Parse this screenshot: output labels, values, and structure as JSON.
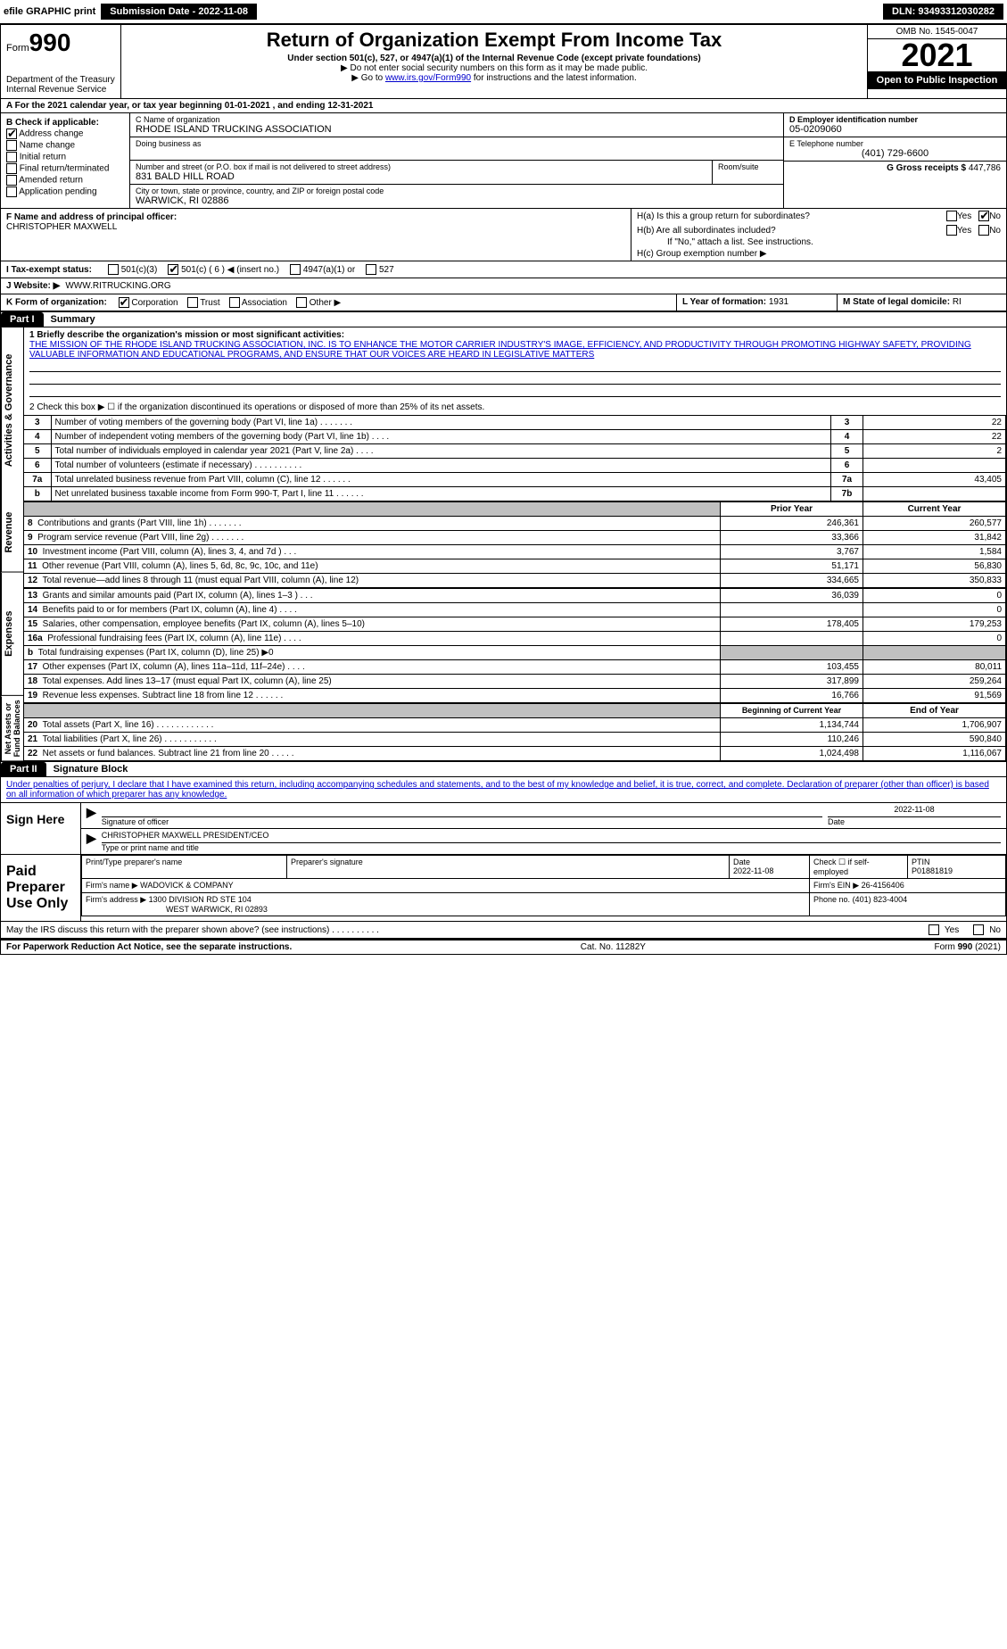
{
  "topbar": {
    "efile_label": "efile GRAPHIC print",
    "submission_label": "Submission Date - 2022-11-08",
    "dln_label": "DLN: 93493312030282"
  },
  "header": {
    "form_small": "Form",
    "form_num": "990",
    "dept": "Department of the Treasury",
    "irs": "Internal Revenue Service",
    "title": "Return of Organization Exempt From Income Tax",
    "subtitle": "Under section 501(c), 527, or 4947(a)(1) of the Internal Revenue Code (except private foundations)",
    "note1": "▶ Do not enter social security numbers on this form as it may be made public.",
    "note2_pre": "▶ Go to ",
    "note2_link": "www.irs.gov/Form990",
    "note2_post": " for instructions and the latest information.",
    "omb": "OMB No. 1545-0047",
    "year": "2021",
    "open_public": "Open to Public Inspection"
  },
  "section_a": "A For the 2021 calendar year, or tax year beginning 01-01-2021    , and ending 12-31-2021",
  "box_b": {
    "title": "B Check if applicable:",
    "items": [
      "Address change",
      "Name change",
      "Initial return",
      "Final return/terminated",
      "Amended return",
      "Application pending"
    ],
    "checked_index": 0
  },
  "box_c": {
    "name_lbl": "C Name of organization",
    "name": "RHODE ISLAND TRUCKING ASSOCIATION",
    "dba_lbl": "Doing business as",
    "dba": "",
    "street_lbl": "Number and street (or P.O. box if mail is not delivered to street address)",
    "room_lbl": "Room/suite",
    "street": "831 BALD HILL ROAD",
    "city_lbl": "City or town, state or province, country, and ZIP or foreign postal code",
    "city": "WARWICK, RI  02886"
  },
  "box_d": {
    "lbl": "D Employer identification number",
    "val": "05-0209060"
  },
  "box_e": {
    "lbl": "E Telephone number",
    "val": "(401) 729-6600"
  },
  "box_g": {
    "lbl": "G Gross receipts $",
    "val": "447,786"
  },
  "box_f": {
    "lbl": "F Name and address of principal officer:",
    "val": "CHRISTOPHER MAXWELL"
  },
  "box_h": {
    "a": "H(a) Is this a group return for subordinates?",
    "a_yes": "Yes",
    "a_no": "No",
    "b": "H(b) Are all subordinates included?",
    "b_yes": "Yes",
    "b_no": "No",
    "b_note": "If \"No,\" attach a list. See instructions.",
    "c": "H(c) Group exemption number ▶"
  },
  "box_i": {
    "lbl": "I   Tax-exempt status:",
    "opts": [
      "501(c)(3)",
      "501(c) ( 6 ) ◀ (insert no.)",
      "4947(a)(1) or",
      "527"
    ],
    "checked": 1
  },
  "box_j": {
    "lbl": "J   Website: ▶",
    "val": "WWW.RITRUCKING.ORG"
  },
  "box_k": {
    "lbl": "K Form of organization:",
    "opts": [
      "Corporation",
      "Trust",
      "Association",
      "Other ▶"
    ],
    "checked": 0
  },
  "box_l": {
    "lbl": "L Year of formation:",
    "val": "1931"
  },
  "box_m": {
    "lbl": "M State of legal domicile:",
    "val": "RI"
  },
  "part1": {
    "header": "Part I",
    "title": "Summary",
    "line1_lbl": "1  Briefly describe the organization's mission or most significant activities:",
    "mission": "THE MISSION OF THE RHODE ISLAND TRUCKING ASSOCIATION, INC. IS TO ENHANCE THE MOTOR CARRIER INDUSTRY'S IMAGE, EFFICIENCY, AND PRODUCTIVITY THROUGH PROMOTING HIGHWAY SAFETY, PROVIDING VALUABLE INFORMATION AND EDUCATIONAL PROGRAMS, AND ENSURE THAT OUR VOICES ARE HEARD IN LEGISLATIVE MATTERS",
    "line2": "2  Check this box ▶ ☐  if the organization discontinued its operations or disposed of more than 25% of its net assets.",
    "gov_side": "Activities & Governance",
    "rev_side": "Revenue",
    "exp_side": "Expenses",
    "net_side": "Net Assets or Fund Balances",
    "gov_rows": [
      {
        "n": "3",
        "t": "Number of voting members of the governing body (Part VI, line 1a)   .    .    .    .    .    .    .",
        "box": "3",
        "v": "22"
      },
      {
        "n": "4",
        "t": "Number of independent voting members of the governing body (Part VI, line 1b)   .    .    .    .",
        "box": "4",
        "v": "22"
      },
      {
        "n": "5",
        "t": "Total number of individuals employed in calendar year 2021 (Part V, line 2a)   .    .    .    .",
        "box": "5",
        "v": "2"
      },
      {
        "n": "6",
        "t": "Total number of volunteers (estimate if necessary)   .    .    .    .    .    .    .    .    .    .",
        "box": "6",
        "v": ""
      },
      {
        "n": "7a",
        "t": "Total unrelated business revenue from Part VIII, column (C), line 12   .    .    .    .    .    .",
        "box": "7a",
        "v": "43,405"
      },
      {
        "n": "b",
        "t": "Net unrelated business taxable income from Form 990-T, Part I, line 11   .    .    .    .    .    .",
        "box": "7b",
        "v": ""
      }
    ],
    "col_prior": "Prior Year",
    "col_current": "Current Year",
    "rev_rows": [
      {
        "n": "8",
        "t": "Contributions and grants (Part VIII, line 1h)   .    .    .    .    .    .    .",
        "p": "246,361",
        "c": "260,577"
      },
      {
        "n": "9",
        "t": "Program service revenue (Part VIII, line 2g)   .    .    .    .    .    .    .",
        "p": "33,366",
        "c": "31,842"
      },
      {
        "n": "10",
        "t": "Investment income (Part VIII, column (A), lines 3, 4, and 7d )   .    .    .",
        "p": "3,767",
        "c": "1,584"
      },
      {
        "n": "11",
        "t": "Other revenue (Part VIII, column (A), lines 5, 6d, 8c, 9c, 10c, and 11e)",
        "p": "51,171",
        "c": "56,830"
      },
      {
        "n": "12",
        "t": "Total revenue—add lines 8 through 11 (must equal Part VIII, column (A), line 12)",
        "p": "334,665",
        "c": "350,833"
      }
    ],
    "exp_rows": [
      {
        "n": "13",
        "t": "Grants and similar amounts paid (Part IX, column (A), lines 1–3 )   .    .    .",
        "p": "36,039",
        "c": "0"
      },
      {
        "n": "14",
        "t": "Benefits paid to or for members (Part IX, column (A), line 4)   .    .    .    .",
        "p": "",
        "c": "0"
      },
      {
        "n": "15",
        "t": "Salaries, other compensation, employee benefits (Part IX, column (A), lines 5–10)",
        "p": "178,405",
        "c": "179,253"
      },
      {
        "n": "16a",
        "t": "Professional fundraising fees (Part IX, column (A), line 11e)   .    .    .    .",
        "p": "",
        "c": "0"
      },
      {
        "n": "b",
        "t": "Total fundraising expenses (Part IX, column (D), line 25) ▶0",
        "p": "shaded",
        "c": "shaded"
      },
      {
        "n": "17",
        "t": "Other expenses (Part IX, column (A), lines 11a–11d, 11f–24e)   .    .    .    .",
        "p": "103,455",
        "c": "80,011"
      },
      {
        "n": "18",
        "t": "Total expenses. Add lines 13–17 (must equal Part IX, column (A), line 25)",
        "p": "317,899",
        "c": "259,264"
      },
      {
        "n": "19",
        "t": "Revenue less expenses. Subtract line 18 from line 12   .    .    .    .    .    .",
        "p": "16,766",
        "c": "91,569"
      }
    ],
    "col_begin": "Beginning of Current Year",
    "col_end": "End of Year",
    "net_rows": [
      {
        "n": "20",
        "t": "Total assets (Part X, line 16)   .    .    .    .    .    .    .    .    .    .    .    .",
        "p": "1,134,744",
        "c": "1,706,907"
      },
      {
        "n": "21",
        "t": "Total liabilities (Part X, line 26)   .    .    .    .    .    .    .    .    .    .    .",
        "p": "110,246",
        "c": "590,840"
      },
      {
        "n": "22",
        "t": "Net assets or fund balances. Subtract line 21 from line 20   .    .    .    .    .",
        "p": "1,024,498",
        "c": "1,116,067"
      }
    ]
  },
  "part2": {
    "header": "Part II",
    "title": "Signature Block",
    "declaration": "Under penalties of perjury, I declare that I have examined this return, including accompanying schedules and statements, and to the best of my knowledge and belief, it is true, correct, and complete. Declaration of preparer (other than officer) is based on all information of which preparer has any knowledge.",
    "sign_here": "Sign Here",
    "sig_officer": "Signature of officer",
    "sig_date": "Date",
    "sig_date_val": "2022-11-08",
    "officer_name": "CHRISTOPHER MAXWELL  PRESIDENT/CEO",
    "officer_lbl": "Type or print name and title",
    "paid_prep": "Paid Preparer Use Only",
    "prep_name_lbl": "Print/Type preparer's name",
    "prep_sig_lbl": "Preparer's signature",
    "prep_date_lbl": "Date",
    "prep_date_val": "2022-11-08",
    "check_self": "Check ☐ if self-employed",
    "ptin_lbl": "PTIN",
    "ptin_val": "P01881819",
    "firm_name_lbl": "Firm's name    ▶",
    "firm_name": "WADOVICK & COMPANY",
    "firm_ein_lbl": "Firm's EIN ▶",
    "firm_ein": "26-4156406",
    "firm_addr_lbl": "Firm's address ▶",
    "firm_addr1": "1300 DIVISION RD STE 104",
    "firm_addr2": "WEST WARWICK, RI  02893",
    "phone_lbl": "Phone no.",
    "phone_val": "(401) 823-4004",
    "discuss": "May the IRS discuss this return with the preparer shown above? (see instructions)   .    .    .    .    .    .    .    .    .    .",
    "discuss_yes": "Yes",
    "discuss_no": "No"
  },
  "footer": {
    "left": "For Paperwork Reduction Act Notice, see the separate instructions.",
    "mid": "Cat. No. 11282Y",
    "right": "Form 990 (2021)"
  }
}
